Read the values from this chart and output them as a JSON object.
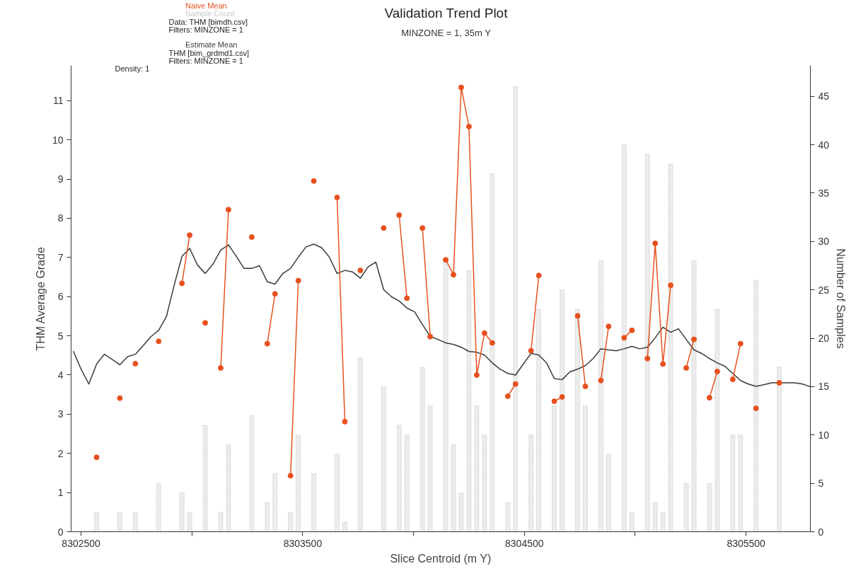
{
  "chart_data": {
    "type": "line",
    "title": "Validation Trend Plot",
    "subtitle": "MINZONE = 1, 35m Y",
    "xlabel": "Slice Centroid (m Y)",
    "ylabel": "THM Average Grade",
    "y2label": "Number of Samples",
    "x": [
      8302465,
      8302500,
      8302535,
      8302570,
      8302605,
      8302640,
      8302675,
      8302710,
      8302745,
      8302780,
      8302815,
      8302850,
      8302885,
      8302920,
      8302955,
      8302990,
      8303025,
      8303060,
      8303095,
      8303130,
      8303165,
      8303200,
      8303235,
      8303270,
      8303305,
      8303340,
      8303375,
      8303410,
      8303445,
      8303480,
      8303515,
      8303550,
      8303585,
      8303620,
      8303655,
      8303690,
      8303725,
      8303760,
      8303795,
      8303830,
      8303865,
      8303900,
      8303935,
      8303970,
      8304005,
      8304040,
      8304075,
      8304110,
      8304145,
      8304180,
      8304215,
      8304250,
      8304285,
      8304320,
      8304355,
      8304390,
      8304425,
      8304460,
      8304495,
      8304530,
      8304565,
      8304600,
      8304635,
      8304670,
      8304705,
      8304740,
      8304775,
      8304810,
      8304845,
      8304880,
      8304915,
      8304950,
      8304985,
      8305020,
      8305055,
      8305090,
      8305125,
      8305160,
      8305195,
      8305230,
      8305265,
      8305300,
      8305335,
      8305370,
      8305405,
      8305440,
      8305475,
      8305510,
      8305545,
      8305580,
      8305615,
      8305650,
      8305685,
      8305720,
      8305755,
      8305790
    ],
    "series": [
      {
        "name": "Sample Count",
        "type": "bar",
        "axis": "y2",
        "color": "#c8c8c8",
        "values": [
          null,
          null,
          null,
          2,
          null,
          null,
          2,
          null,
          2,
          null,
          null,
          5,
          null,
          null,
          4,
          2,
          null,
          11,
          null,
          2,
          9,
          null,
          null,
          12,
          null,
          3,
          6,
          null,
          2,
          10,
          null,
          6,
          null,
          null,
          8,
          1,
          null,
          18,
          null,
          null,
          15,
          null,
          11,
          10,
          null,
          17,
          13,
          null,
          28,
          9,
          4,
          27,
          13,
          10,
          37,
          null,
          3,
          46,
          null,
          10,
          23,
          null,
          13,
          25,
          null,
          23,
          13,
          null,
          28,
          8,
          null,
          40,
          2,
          null,
          39,
          3,
          2,
          38,
          null,
          5,
          28,
          null,
          5,
          23,
          null,
          10,
          10,
          null,
          26,
          null,
          null,
          17,
          null,
          null,
          null,
          null
        ]
      },
      {
        "name": "Estimate Mean",
        "color": "#3a3a3a",
        "values": [
          4.61,
          4.15,
          3.77,
          4.28,
          4.53,
          4.4,
          4.26,
          4.47,
          4.53,
          4.75,
          4.98,
          5.14,
          5.49,
          6.29,
          7.03,
          7.23,
          6.81,
          6.59,
          6.83,
          7.19,
          7.32,
          7.03,
          6.72,
          6.72,
          6.79,
          6.38,
          6.32,
          6.59,
          6.72,
          7.01,
          7.27,
          7.34,
          7.25,
          7.01,
          6.59,
          6.67,
          6.63,
          6.47,
          6.76,
          6.88,
          6.18,
          6.0,
          5.89,
          5.71,
          5.61,
          5.29,
          4.98,
          4.91,
          4.82,
          4.78,
          4.71,
          4.6,
          4.58,
          4.51,
          4.31,
          4.15,
          4.04,
          4.0,
          4.28,
          4.55,
          4.51,
          4.31,
          3.91,
          3.88,
          4.08,
          4.15,
          4.24,
          4.42,
          4.67,
          4.64,
          4.62,
          4.67,
          4.73,
          4.67,
          4.71,
          4.95,
          5.22,
          5.09,
          5.18,
          4.91,
          4.64,
          4.55,
          4.42,
          4.31,
          4.22,
          4.04,
          3.86,
          3.77,
          3.71,
          3.75,
          3.8,
          3.8,
          3.8,
          3.8,
          3.77,
          3.7
        ]
      },
      {
        "name": "Naive Mean",
        "marker": "circle",
        "color": "#e8501e",
        "values": [
          null,
          null,
          null,
          1.9,
          null,
          null,
          3.41,
          null,
          4.29,
          null,
          null,
          4.86,
          null,
          null,
          6.34,
          7.57,
          null,
          5.33,
          null,
          4.18,
          8.22,
          null,
          null,
          7.52,
          null,
          4.8,
          6.07,
          null,
          1.43,
          6.41,
          null,
          8.95,
          null,
          null,
          8.53,
          2.81,
          null,
          6.67,
          null,
          null,
          7.75,
          null,
          8.08,
          5.96,
          null,
          7.75,
          4.98,
          null,
          6.94,
          6.56,
          11.34,
          10.34,
          4.0,
          5.07,
          4.82,
          null,
          3.46,
          3.77,
          null,
          4.62,
          6.54,
          null,
          3.33,
          3.44,
          null,
          5.51,
          3.71,
          null,
          3.86,
          5.24,
          null,
          4.95,
          5.14,
          null,
          4.42,
          7.36,
          4.28,
          6.29,
          null,
          4.18,
          4.91,
          null,
          3.42,
          4.09,
          null,
          3.89,
          4.8,
          null,
          3.15,
          null,
          null,
          3.8,
          null,
          null,
          null,
          null
        ]
      }
    ],
    "annotations": [
      "Data: THM [bimdh.csv]",
      "Filters: MINZONE = 1",
      "THM [bim_grdmd1.csv]",
      "Filters: MINZONE = 1",
      "Density: 1"
    ],
    "xlim": [
      8302455,
      8305790
    ],
    "xticks": [
      8302500,
      {
        "value": 8303000,
        "label": null
      },
      8303500,
      {
        "value": 8304000,
        "label": null
      },
      8304500,
      {
        "value": 8305000,
        "label": null
      },
      8305500
    ],
    "ylim": [
      0,
      11.9
    ],
    "yticks": [
      0,
      1,
      2,
      3,
      4,
      5,
      6,
      7,
      8,
      9,
      10,
      11
    ],
    "y2lim": [
      0,
      48.2
    ],
    "y2ticks": [
      0,
      5,
      10,
      15,
      20,
      25,
      30,
      35,
      40,
      45
    ],
    "grid": false,
    "legend": "top left",
    "line_style": "solid"
  }
}
